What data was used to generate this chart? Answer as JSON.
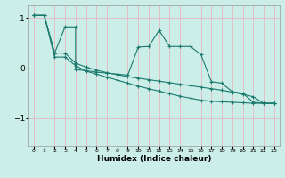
{
  "title": "",
  "xlabel": "Humidex (Indice chaleur)",
  "background_color": "#cceee8",
  "grid_color": "#e8b8c0",
  "line_color": "#1a7a6e",
  "xlim": [
    -0.5,
    23.5
  ],
  "ylim": [
    -1.55,
    1.25
  ],
  "yticks": [
    -1,
    0,
    1
  ],
  "xticks": [
    0,
    1,
    2,
    3,
    4,
    5,
    6,
    7,
    8,
    9,
    10,
    11,
    12,
    13,
    14,
    15,
    16,
    17,
    18,
    19,
    20,
    21,
    22,
    23
  ],
  "s1x": [
    0,
    1,
    2,
    3,
    4,
    4,
    5,
    6,
    7,
    8,
    9,
    10,
    11,
    12,
    13,
    14,
    15,
    16,
    17,
    18,
    19,
    20,
    21,
    22,
    23
  ],
  "s1y": [
    1.05,
    1.05,
    0.3,
    0.82,
    0.82,
    -0.03,
    -0.05,
    -0.08,
    -0.1,
    -0.12,
    -0.14,
    0.42,
    0.43,
    0.75,
    0.43,
    0.43,
    0.43,
    0.27,
    -0.27,
    -0.3,
    -0.47,
    -0.5,
    -0.68,
    -0.7,
    -0.7
  ],
  "s2x": [
    0,
    1,
    2,
    3,
    4,
    5,
    6,
    7,
    8,
    9,
    10,
    11,
    12,
    13,
    14,
    15,
    16,
    17,
    18,
    19,
    20,
    21,
    22,
    23
  ],
  "s2y": [
    1.05,
    1.05,
    0.3,
    0.3,
    0.1,
    0.02,
    -0.04,
    -0.09,
    -0.13,
    -0.17,
    -0.2,
    -0.23,
    -0.26,
    -0.29,
    -0.32,
    -0.35,
    -0.38,
    -0.41,
    -0.44,
    -0.48,
    -0.52,
    -0.57,
    -0.7,
    -0.7
  ],
  "s3x": [
    0,
    1,
    2,
    3,
    4,
    5,
    6,
    7,
    8,
    9,
    10,
    11,
    12,
    13,
    14,
    15,
    16,
    17,
    18,
    19,
    20,
    21,
    22,
    23
  ],
  "s3y": [
    1.05,
    1.05,
    0.22,
    0.22,
    0.05,
    -0.06,
    -0.12,
    -0.18,
    -0.24,
    -0.3,
    -0.36,
    -0.41,
    -0.46,
    -0.51,
    -0.56,
    -0.6,
    -0.64,
    -0.66,
    -0.67,
    -0.68,
    -0.69,
    -0.7,
    -0.7,
    -0.7
  ]
}
